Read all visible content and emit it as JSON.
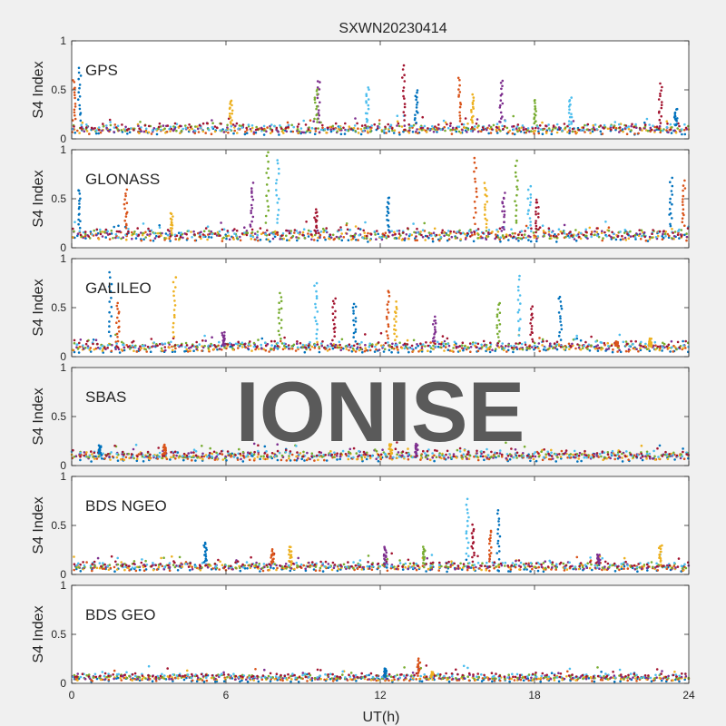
{
  "figure_title": "SXWN20230414",
  "watermark": "IONISE",
  "colors": {
    "page": "#f0f0f0",
    "axes_bg": "#ffffff",
    "axis": "#262626",
    "watermark": "#d6d6d6",
    "series": [
      "#0072bd",
      "#d95319",
      "#edb120",
      "#7e2f8e",
      "#77ac30",
      "#4dbeee",
      "#a2142f"
    ]
  },
  "chart_data": [
    {
      "type": "scatter",
      "panel_label": "GPS",
      "ylabel": "S4 Index",
      "xlim": [
        0,
        24
      ],
      "ylim": [
        0,
        1
      ],
      "xticks": [
        0,
        6,
        12,
        18,
        24
      ],
      "yticks": [
        0,
        0.5,
        1
      ],
      "ytick_labels": [
        "0",
        "0.5",
        "1"
      ],
      "baseline": 0.1,
      "spikes": [
        [
          0.3,
          0.72
        ],
        [
          0.1,
          0.6
        ],
        [
          6.2,
          0.4
        ],
        [
          9.6,
          0.6
        ],
        [
          9.5,
          0.5
        ],
        [
          11.5,
          0.52
        ],
        [
          12.9,
          0.74
        ],
        [
          13.4,
          0.5
        ],
        [
          15.1,
          0.62
        ],
        [
          15.6,
          0.45
        ],
        [
          16.7,
          0.6
        ],
        [
          18.0,
          0.4
        ],
        [
          19.4,
          0.42
        ],
        [
          22.9,
          0.55
        ],
        [
          23.5,
          0.3
        ]
      ]
    },
    {
      "type": "scatter",
      "panel_label": "GLONASS",
      "ylabel": "S4 Index",
      "xlim": [
        0,
        24
      ],
      "ylim": [
        0,
        1
      ],
      "xticks": [
        0,
        6,
        12,
        18,
        24
      ],
      "yticks": [
        0,
        0.5,
        1
      ],
      "ytick_labels": [
        "0",
        "0.5",
        "1"
      ],
      "baseline": 0.13,
      "spikes": [
        [
          0.3,
          0.6
        ],
        [
          2.1,
          0.58
        ],
        [
          3.9,
          0.35
        ],
        [
          7.0,
          0.65
        ],
        [
          7.6,
          0.98
        ],
        [
          8.0,
          0.9
        ],
        [
          9.5,
          0.38
        ],
        [
          12.3,
          0.52
        ],
        [
          15.7,
          0.92
        ],
        [
          16.1,
          0.65
        ],
        [
          16.8,
          0.55
        ],
        [
          17.3,
          0.88
        ],
        [
          17.8,
          0.62
        ],
        [
          18.1,
          0.5
        ],
        [
          23.3,
          0.7
        ],
        [
          23.8,
          0.68
        ]
      ]
    },
    {
      "type": "scatter",
      "panel_label": "GALILEO",
      "ylabel": "S4 Index",
      "xlim": [
        0,
        24
      ],
      "ylim": [
        0,
        1
      ],
      "xticks": [
        0,
        6,
        12,
        18,
        24
      ],
      "yticks": [
        0,
        0.5,
        1
      ],
      "ytick_labels": [
        "0",
        "0.5",
        "1"
      ],
      "baseline": 0.1,
      "spikes": [
        [
          1.5,
          0.85
        ],
        [
          1.8,
          0.55
        ],
        [
          4.0,
          0.8
        ],
        [
          5.9,
          0.25
        ],
        [
          8.1,
          0.65
        ],
        [
          9.5,
          0.76
        ],
        [
          10.2,
          0.6
        ],
        [
          11.0,
          0.55
        ],
        [
          12.3,
          0.68
        ],
        [
          12.6,
          0.55
        ],
        [
          14.1,
          0.4
        ],
        [
          16.6,
          0.55
        ],
        [
          17.4,
          0.82
        ],
        [
          17.9,
          0.5
        ],
        [
          19.0,
          0.62
        ],
        [
          21.2,
          0.15
        ],
        [
          22.5,
          0.18
        ]
      ]
    },
    {
      "type": "scatter",
      "panel_label": "SBAS",
      "ylabel": "S4 Index",
      "xlim": [
        0,
        24
      ],
      "ylim": [
        0,
        1
      ],
      "xticks": [
        0,
        6,
        12,
        18,
        24
      ],
      "yticks": [
        0,
        0.5,
        1
      ],
      "ytick_labels": [
        "0",
        "0.5",
        "1"
      ],
      "baseline": 0.1,
      "spikes": [
        [
          1.1,
          0.2
        ],
        [
          3.6,
          0.22
        ],
        [
          12.4,
          0.22
        ],
        [
          13.4,
          0.22
        ]
      ]
    },
    {
      "type": "scatter",
      "panel_label": "BDS NGEO",
      "ylabel": "S4 Index",
      "xlim": [
        0,
        24
      ],
      "ylim": [
        0,
        1
      ],
      "xticks": [
        0,
        6,
        12,
        18,
        24
      ],
      "yticks": [
        0,
        0.5,
        1
      ],
      "ytick_labels": [
        "0",
        "0.5",
        "1"
      ],
      "baseline": 0.08,
      "spikes": [
        [
          5.2,
          0.33
        ],
        [
          7.8,
          0.25
        ],
        [
          8.5,
          0.28
        ],
        [
          12.2,
          0.28
        ],
        [
          13.7,
          0.28
        ],
        [
          15.4,
          0.76
        ],
        [
          15.6,
          0.5
        ],
        [
          16.6,
          0.65
        ],
        [
          16.3,
          0.45
        ],
        [
          22.9,
          0.3
        ],
        [
          20.5,
          0.2
        ]
      ]
    },
    {
      "type": "scatter",
      "panel_label": "BDS GEO",
      "ylabel": "S4 Index",
      "xlabel": "UT(h)",
      "xlim": [
        0,
        24
      ],
      "ylim": [
        0,
        1
      ],
      "xticks": [
        0,
        6,
        12,
        18,
        24
      ],
      "xtick_labels": [
        "0",
        "6",
        "12",
        "18",
        "24"
      ],
      "yticks": [
        0,
        0.5,
        1
      ],
      "ytick_labels": [
        "0",
        "0.5",
        "1"
      ],
      "baseline": 0.06,
      "spikes": [
        [
          12.2,
          0.15
        ],
        [
          13.5,
          0.25
        ],
        [
          14.0,
          0.12
        ]
      ]
    }
  ]
}
